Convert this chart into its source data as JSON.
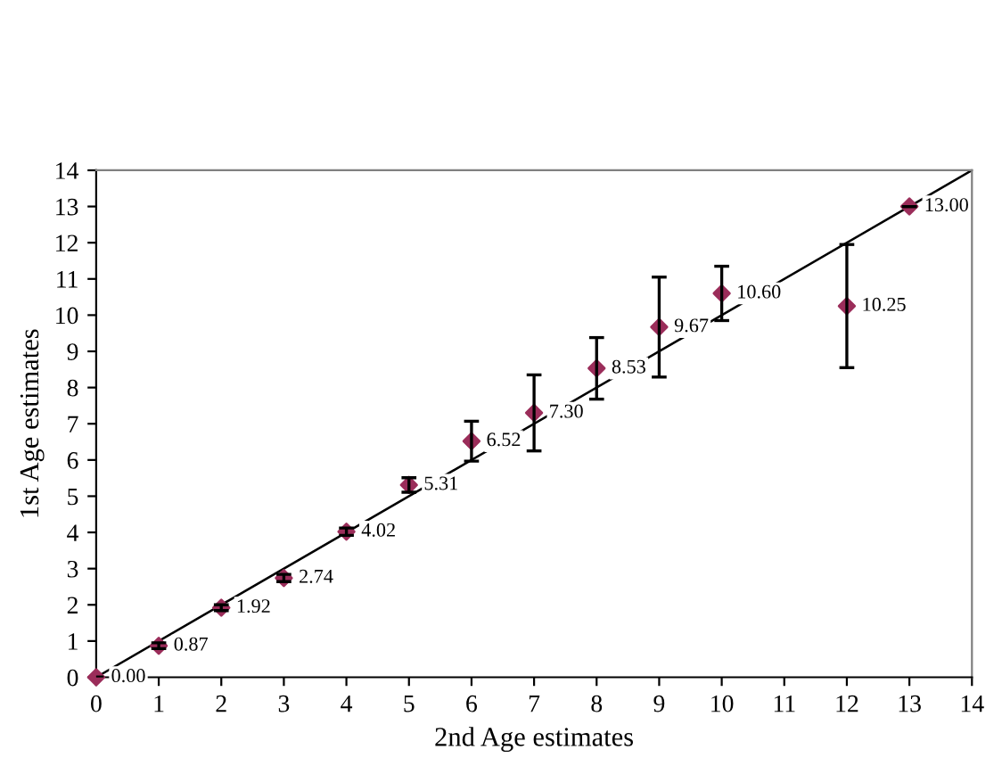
{
  "chart_data": {
    "type": "scatter",
    "xlabel": "2nd Age estimates",
    "ylabel": "1st Age estimates",
    "xlim": [
      0,
      14
    ],
    "ylim": [
      0,
      14
    ],
    "xticks": [
      0,
      1,
      2,
      3,
      4,
      5,
      6,
      7,
      8,
      9,
      10,
      11,
      12,
      13,
      14
    ],
    "yticks": [
      0,
      1,
      2,
      3,
      4,
      5,
      6,
      7,
      8,
      9,
      10,
      11,
      12,
      13,
      14
    ],
    "grid": false,
    "legend": false,
    "series": [
      {
        "marker": "diamond",
        "color": "#9b2d5a",
        "x": [
          0,
          1,
          2,
          3,
          4,
          5,
          6,
          7,
          8,
          9,
          10,
          12,
          13
        ],
        "values": [
          0.0,
          0.87,
          1.92,
          2.74,
          4.02,
          5.31,
          6.52,
          7.3,
          8.53,
          9.67,
          10.6,
          10.25,
          13.0
        ],
        "errors": [
          null,
          0.08,
          0.08,
          0.1,
          0.1,
          0.2,
          0.55,
          1.05,
          0.85,
          1.38,
          0.75,
          1.7,
          null
        ],
        "value_labels": [
          "0.00",
          "0.87",
          "1.92",
          "2.74",
          "4.02",
          "5.31",
          "6.52",
          "7.30",
          "8.53",
          "9.67",
          "10.60",
          "10.25",
          "13.00"
        ]
      },
      {
        "type": "line",
        "marker": "none",
        "color": "#000000",
        "x": [
          0,
          14
        ],
        "values": [
          0,
          14
        ]
      }
    ]
  }
}
